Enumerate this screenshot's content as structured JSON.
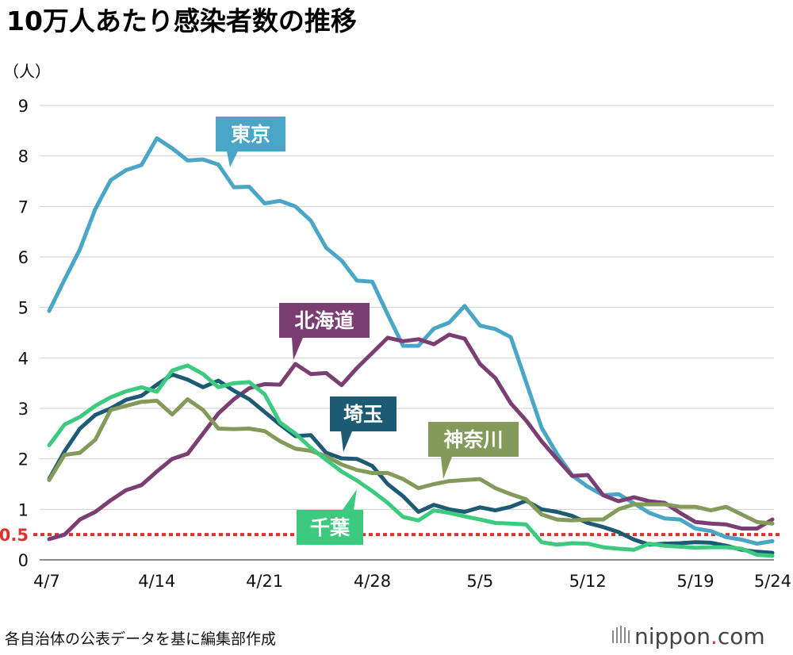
{
  "chart_data": {
    "type": "line",
    "title": "10万人あたり感染者数の推移",
    "ylabel": "（人）",
    "xlabel": "",
    "ylim": [
      0,
      9
    ],
    "yticks": [
      0,
      1,
      2,
      3,
      4,
      5,
      6,
      7,
      8,
      9
    ],
    "threshold": {
      "value": 0.5,
      "label": "0.5",
      "color": "#d9332e"
    },
    "categories": [
      "4/7",
      "4/8",
      "4/9",
      "4/10",
      "4/11",
      "4/12",
      "4/13",
      "4/14",
      "4/15",
      "4/16",
      "4/17",
      "4/18",
      "4/19",
      "4/20",
      "4/21",
      "4/22",
      "4/23",
      "4/24",
      "4/25",
      "4/26",
      "4/27",
      "4/28",
      "4/29",
      "4/30",
      "5/1",
      "5/2",
      "5/3",
      "5/4",
      "5/5",
      "5/6",
      "5/7",
      "5/8",
      "5/9",
      "5/10",
      "5/11",
      "5/12",
      "5/13",
      "5/14",
      "5/15",
      "5/16",
      "5/17",
      "5/18",
      "5/19",
      "5/20",
      "5/21",
      "5/22",
      "5/23",
      "5/24"
    ],
    "xtick_labels": [
      "4/7",
      "4/14",
      "4/21",
      "4/28",
      "5/5",
      "5/12",
      "5/19",
      "5/24"
    ],
    "series": [
      {
        "name": "東京",
        "color": "#4aa6c6",
        "values": [
          4.93,
          5.55,
          6.15,
          6.95,
          7.52,
          7.72,
          7.82,
          8.35,
          8.15,
          7.91,
          7.93,
          7.83,
          7.38,
          7.39,
          7.06,
          7.11,
          7.0,
          6.72,
          6.18,
          5.93,
          5.53,
          5.51,
          4.86,
          4.24,
          4.24,
          4.58,
          4.7,
          5.03,
          4.64,
          4.57,
          4.41,
          3.52,
          2.62,
          2.1,
          1.67,
          1.45,
          1.28,
          1.3,
          1.12,
          0.93,
          0.82,
          0.8,
          0.62,
          0.57,
          0.45,
          0.4,
          0.32,
          0.37
        ]
      },
      {
        "name": "北海道",
        "color": "#7b3e72",
        "values": [
          0.41,
          0.5,
          0.8,
          0.95,
          1.18,
          1.38,
          1.48,
          1.75,
          2.0,
          2.1,
          2.5,
          2.9,
          3.18,
          3.4,
          3.48,
          3.47,
          3.88,
          3.68,
          3.7,
          3.46,
          3.8,
          4.1,
          4.4,
          4.33,
          4.37,
          4.27,
          4.46,
          4.38,
          3.88,
          3.6,
          3.1,
          2.76,
          2.35,
          2.0,
          1.66,
          1.68,
          1.28,
          1.16,
          1.24,
          1.16,
          1.13,
          0.93,
          0.75,
          0.72,
          0.7,
          0.62,
          0.62,
          0.8
        ]
      },
      {
        "name": "埼玉",
        "color": "#1d5a73",
        "values": [
          1.6,
          2.15,
          2.6,
          2.87,
          3.0,
          3.17,
          3.25,
          3.47,
          3.67,
          3.57,
          3.42,
          3.55,
          3.35,
          3.18,
          2.93,
          2.68,
          2.45,
          2.47,
          2.12,
          2.01,
          2.0,
          1.86,
          1.5,
          1.26,
          0.95,
          1.09,
          1.0,
          0.95,
          1.04,
          0.98,
          1.05,
          1.17,
          1.0,
          0.95,
          0.87,
          0.73,
          0.65,
          0.55,
          0.4,
          0.3,
          0.32,
          0.33,
          0.35,
          0.34,
          0.28,
          0.2,
          0.16,
          0.14
        ]
      },
      {
        "name": "神奈川",
        "color": "#849a5a",
        "values": [
          1.58,
          2.08,
          2.12,
          2.38,
          2.97,
          3.05,
          3.13,
          3.15,
          2.88,
          3.18,
          2.97,
          2.6,
          2.59,
          2.6,
          2.55,
          2.35,
          2.2,
          2.16,
          2.05,
          1.89,
          1.78,
          1.72,
          1.72,
          1.6,
          1.42,
          1.5,
          1.56,
          1.58,
          1.6,
          1.42,
          1.3,
          1.2,
          0.9,
          0.8,
          0.78,
          0.8,
          0.8,
          1.0,
          1.1,
          1.1,
          1.1,
          1.05,
          1.05,
          0.98,
          1.05,
          0.9,
          0.75,
          0.72
        ]
      },
      {
        "name": "千葉",
        "color": "#3cca7e",
        "values": [
          2.27,
          2.68,
          2.83,
          3.05,
          3.22,
          3.34,
          3.42,
          3.33,
          3.75,
          3.85,
          3.68,
          3.42,
          3.5,
          3.52,
          3.28,
          2.72,
          2.5,
          2.22,
          1.98,
          1.75,
          1.57,
          1.36,
          1.13,
          0.85,
          0.78,
          0.98,
          0.93,
          0.86,
          0.8,
          0.73,
          0.72,
          0.7,
          0.35,
          0.3,
          0.33,
          0.32,
          0.25,
          0.22,
          0.2,
          0.32,
          0.28,
          0.26,
          0.24,
          0.25,
          0.25,
          0.22,
          0.1,
          0.08
        ]
      }
    ],
    "callouts": [
      {
        "series": "東京",
        "label": "東京"
      },
      {
        "series": "北海道",
        "label": "北海道"
      },
      {
        "series": "埼玉",
        "label": "埼玉"
      },
      {
        "series": "神奈川",
        "label": "神奈川"
      },
      {
        "series": "千葉",
        "label": "千葉"
      }
    ]
  },
  "footer": {
    "source": "各自治体の公表データを基に編集部作成"
  },
  "brand": {
    "name": "nippon",
    "dot": ".",
    "suffix": "com"
  }
}
